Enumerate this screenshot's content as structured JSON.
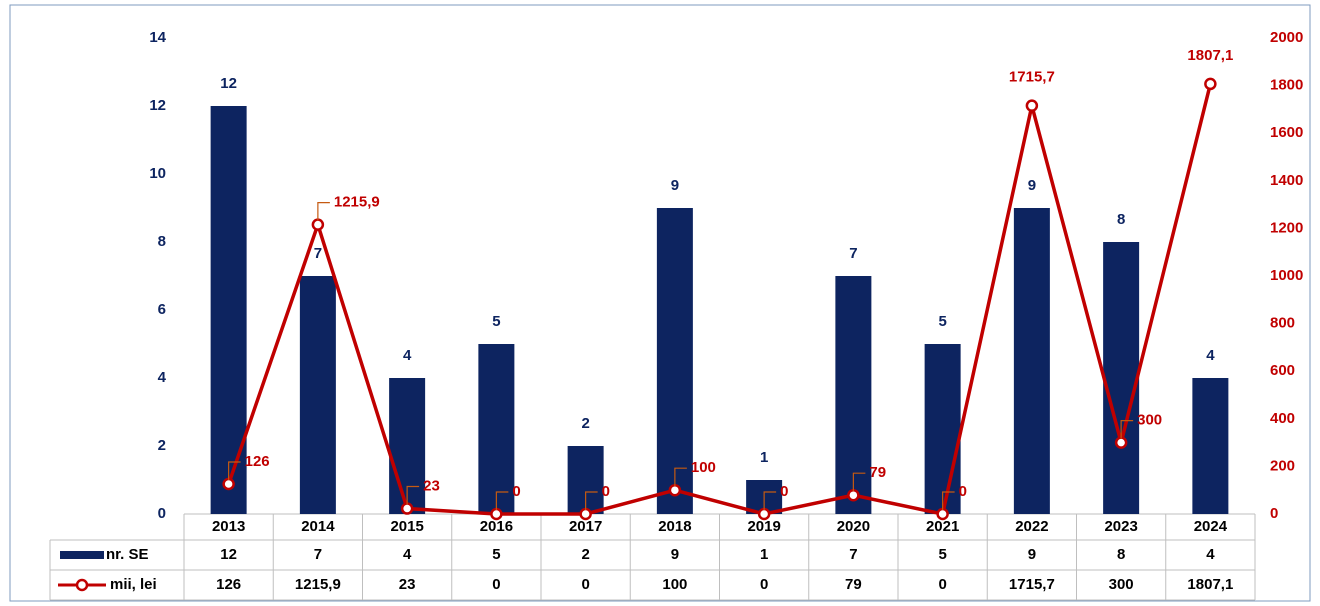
{
  "chart_data": {
    "type": "bar_line",
    "categories": [
      "2013",
      "2014",
      "2015",
      "2016",
      "2017",
      "2018",
      "2019",
      "2020",
      "2021",
      "2022",
      "2023",
      "2024"
    ],
    "series": [
      {
        "name": "nr. SE",
        "color": "#0d2460",
        "values": [
          12,
          7,
          4,
          5,
          2,
          9,
          1,
          7,
          5,
          9,
          8,
          4
        ]
      },
      {
        "name": "mii, lei",
        "color": "#c00000",
        "axis": "y2",
        "values": [
          126,
          1215.9,
          23,
          0,
          0,
          100,
          0,
          79,
          0,
          1715.7,
          300,
          1807.1
        ],
        "value_labels": [
          "126",
          "1215,9",
          "23",
          "0",
          "0",
          "100",
          "0",
          "79",
          "0",
          "1715,7",
          "300",
          "1807,1"
        ]
      }
    ],
    "ylim": [
      0,
      14
    ],
    "yticks": [
      0,
      2,
      4,
      6,
      8,
      10,
      12,
      14
    ],
    "y2lim": [
      0,
      2000
    ],
    "y2ticks": [
      0,
      200,
      400,
      600,
      800,
      1000,
      1200,
      1400,
      1600,
      1800,
      2000
    ],
    "grid": false
  }
}
